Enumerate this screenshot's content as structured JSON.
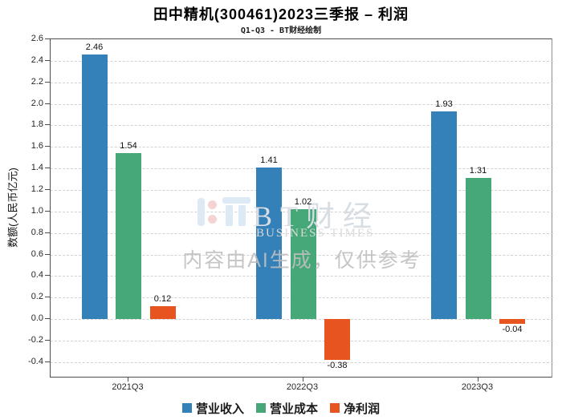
{
  "chart_data": {
    "type": "bar",
    "title": "田中精机(300461)2023三季报 – 利润",
    "subtitle": "Q1-Q3 - BT财经绘制",
    "ylabel": "数额(人民币亿元)",
    "categories": [
      "2021Q3",
      "2022Q3",
      "2023Q3"
    ],
    "series": [
      {
        "name": "营业收入",
        "color": "#3480b8",
        "values": [
          2.46,
          1.41,
          1.93
        ]
      },
      {
        "name": "营业成本",
        "color": "#46a878",
        "values": [
          1.54,
          1.02,
          1.31
        ]
      },
      {
        "name": "净利润",
        "color": "#e8541f",
        "values": [
          0.12,
          -0.38,
          -0.04
        ]
      }
    ],
    "value_labels": [
      "2.46",
      "1.41",
      "1.93",
      "1.54",
      "1.02",
      "1.31",
      "0.12",
      "-0.38",
      "-0.04"
    ],
    "ylim": [
      -0.55,
      2.6
    ],
    "yticks": [
      -0.4,
      -0.2,
      0,
      0.2,
      0.4,
      0.6,
      0.8,
      1,
      1.2,
      1.4,
      1.6,
      1.8,
      2,
      2.2,
      2.4,
      2.6
    ],
    "grid": "horizontal-dashed",
    "legend_position": "bottom-center"
  },
  "watermark": {
    "brand": "BT财经",
    "brand_sub": "BUSINESS TIMES",
    "disclaimer": "内容由AI生成，仅供参考"
  }
}
